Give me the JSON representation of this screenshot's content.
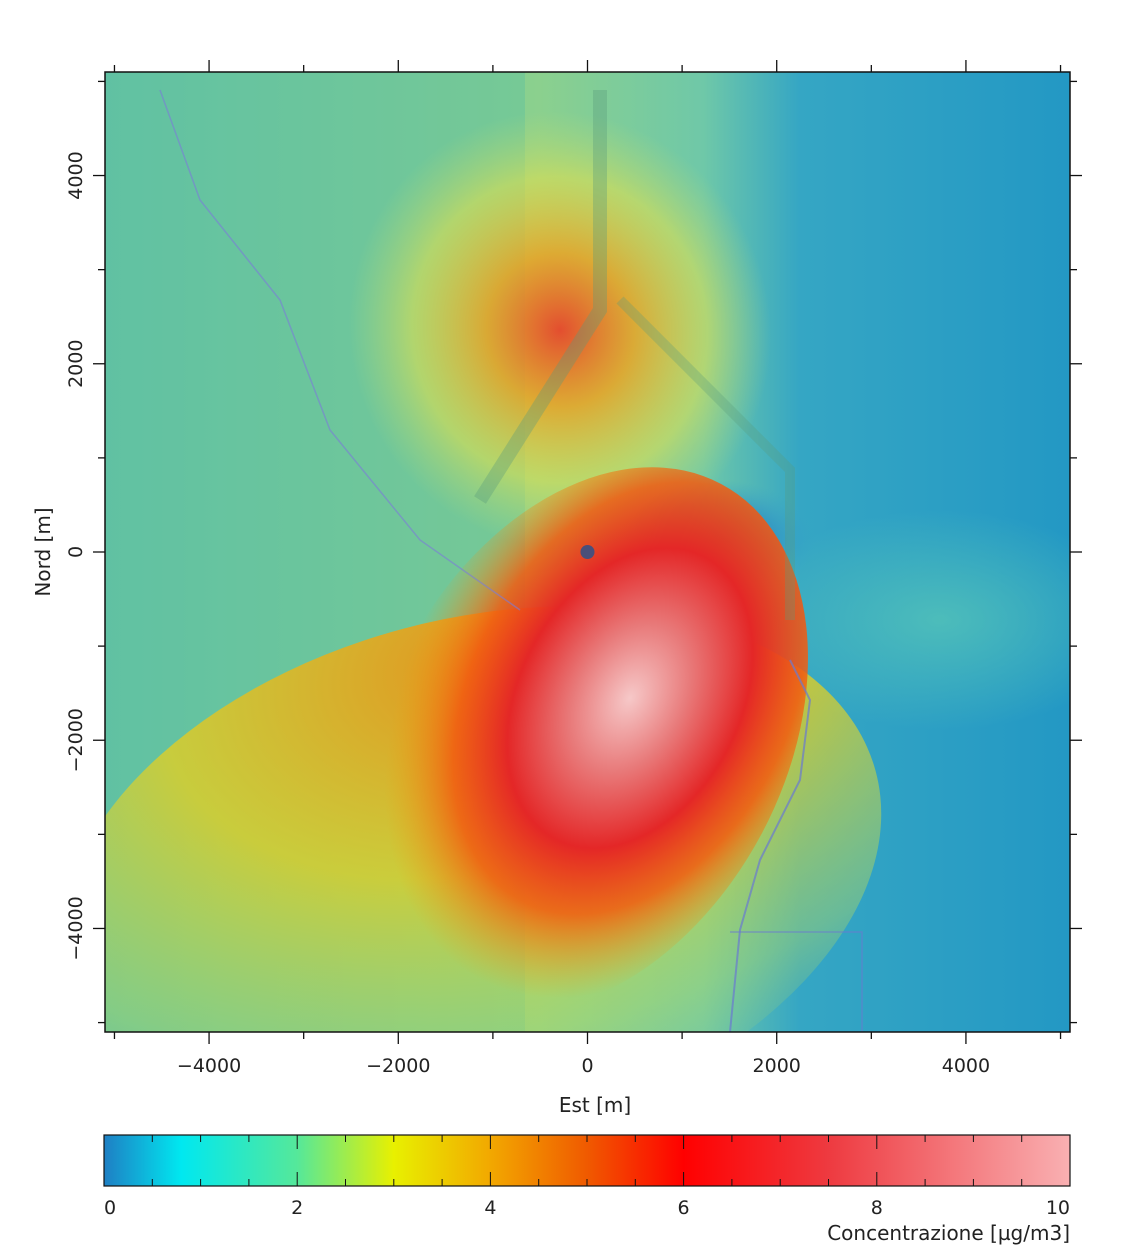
{
  "map": {
    "x_axis": {
      "label": "Est [m]",
      "range": [
        -5100,
        5100
      ],
      "ticks": [
        -4000,
        -2000,
        0,
        2000,
        4000
      ],
      "tick_labels": [
        "−4000",
        "−2000",
        "0",
        "2000",
        "4000"
      ],
      "minor_ticks": [
        -5000,
        -3000,
        -1000,
        1000,
        3000,
        5000
      ]
    },
    "y_axis": {
      "label": "Nord [m]",
      "range": [
        -5100,
        5100
      ],
      "ticks": [
        -4000,
        -2000,
        0,
        2000,
        4000
      ],
      "tick_labels": [
        "−4000",
        "−2000",
        "0",
        "2000",
        "4000"
      ],
      "minor_ticks": [
        -5000,
        -3000,
        -1000,
        1000,
        3000,
        5000
      ]
    },
    "source_marker": {
      "x": 0,
      "y": 0,
      "color": "#4a4f7a"
    },
    "colors": {
      "background_land": "#74c8a4",
      "background_sea": "#2aa0c6",
      "plume_core": "#e92a2a",
      "plume_peak": "#f2b4b4"
    }
  },
  "colorbar": {
    "label": "Concentrazione [µg/m3]",
    "range": [
      0,
      10
    ],
    "ticks": [
      0,
      2,
      4,
      6,
      8,
      10
    ],
    "tick_labels": [
      "0",
      "2",
      "4",
      "6",
      "8",
      "10"
    ],
    "stops": [
      {
        "value": 0,
        "color": "#1e7fc4"
      },
      {
        "value": 0.8,
        "color": "#00e8f0"
      },
      {
        "value": 2,
        "color": "#55e89a"
      },
      {
        "value": 3,
        "color": "#e8f000"
      },
      {
        "value": 4,
        "color": "#f2a800"
      },
      {
        "value": 5,
        "color": "#f05a00"
      },
      {
        "value": 6,
        "color": "#ff0000"
      },
      {
        "value": 7.5,
        "color": "#ee3a40"
      },
      {
        "value": 10,
        "color": "#f9b0b2"
      }
    ]
  }
}
